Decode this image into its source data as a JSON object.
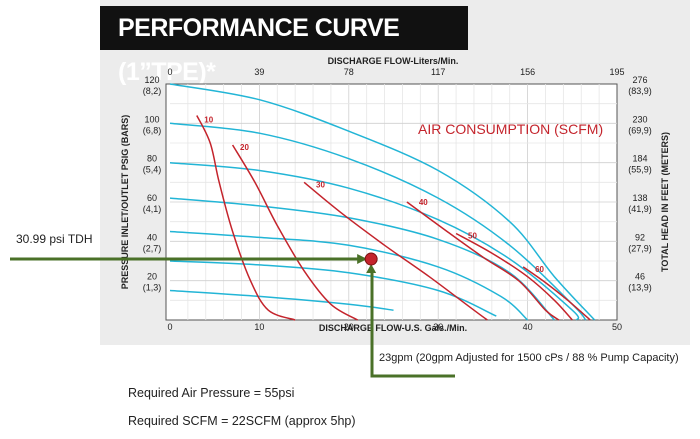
{
  "title": "PERFORMANCE CURVE (1”TPE)*",
  "annotations": {
    "tdh": "30.99 psi TDH",
    "flow": "23gpm (20gpm Adjusted for 1500 cPs / 88 % Pump Capacity)"
  },
  "summary": [
    "Required Air Pressure = 55psi",
    "Required SCFM = 22SCFM (approx 5hp)"
  ],
  "colors": {
    "head_curves": "#22b5d6",
    "air_curves": "#c4242c",
    "operating_lines": "#4a7128",
    "operating_point": "#c4242c",
    "title_bar": "#111111"
  },
  "chart_data": {
    "type": "line",
    "title": "AIR CONSUMPTION (SCFM)",
    "x_top": {
      "label": "DISCHARGE FLOW-Liters/Min.",
      "ticks": [
        "0",
        "39",
        "78",
        "117",
        "156",
        "195"
      ]
    },
    "x_bottom": {
      "label": "DISCHARGE FLOW-U.S. Gals./Min.",
      "ticks": [
        "0",
        "10",
        "20",
        "30",
        "40",
        "50"
      ],
      "range": [
        0,
        50
      ]
    },
    "y_left": {
      "label": "PRESSURE INLET/OUTLET PSIG (BARS)",
      "ticks": [
        {
          "value": 20,
          "psi": "20",
          "bar": "(1,3)"
        },
        {
          "value": 40,
          "psi": "40",
          "bar": "(2,7)"
        },
        {
          "value": 60,
          "psi": "60",
          "bar": "(4,1)"
        },
        {
          "value": 80,
          "psi": "80",
          "bar": "(5,4)"
        },
        {
          "value": 100,
          "psi": "100",
          "bar": "(6,8)"
        },
        {
          "value": 120,
          "psi": "120",
          "bar": "(8,2)"
        }
      ],
      "range": [
        0,
        120
      ]
    },
    "y_right": {
      "label": "TOTAL HEAD IN FEET (METERS)",
      "ticks": [
        {
          "value": 20,
          "feet": "46",
          "m": "(13,9)"
        },
        {
          "value": 40,
          "feet": "92",
          "m": "(27,9)"
        },
        {
          "value": 60,
          "feet": "138",
          "m": "(41,9)"
        },
        {
          "value": 80,
          "feet": "184",
          "m": "(55,9)"
        },
        {
          "value": 100,
          "feet": "230",
          "m": "(69,9)"
        },
        {
          "value": 120,
          "feet": "276",
          "m": "(83,9)"
        }
      ]
    },
    "pressure_curves": [
      {
        "values": [
          [
            0,
            120
          ],
          [
            10,
            112
          ],
          [
            20,
            96
          ],
          [
            30,
            76
          ],
          [
            38,
            50
          ],
          [
            43,
            22
          ],
          [
            47.5,
            0
          ]
        ]
      },
      {
        "values": [
          [
            0,
            100
          ],
          [
            10,
            95
          ],
          [
            20,
            82
          ],
          [
            30,
            62
          ],
          [
            38,
            38
          ],
          [
            45,
            8
          ],
          [
            46.5,
            0
          ]
        ]
      },
      {
        "values": [
          [
            0,
            80
          ],
          [
            10,
            76
          ],
          [
            20,
            67
          ],
          [
            30,
            51
          ],
          [
            38,
            31
          ],
          [
            45,
            5
          ],
          [
            45.5,
            0
          ]
        ]
      },
      {
        "values": [
          [
            0,
            62
          ],
          [
            10,
            58
          ],
          [
            20,
            52
          ],
          [
            30,
            41
          ],
          [
            38,
            24
          ],
          [
            43,
            0
          ]
        ]
      },
      {
        "values": [
          [
            0,
            45
          ],
          [
            10,
            42
          ],
          [
            20,
            38
          ],
          [
            30,
            27
          ],
          [
            37,
            12
          ],
          [
            40,
            0
          ]
        ]
      },
      {
        "values": [
          [
            0,
            30
          ],
          [
            10,
            28
          ],
          [
            20,
            24
          ],
          [
            30,
            15
          ],
          [
            36.5,
            2
          ]
        ]
      },
      {
        "values": [
          [
            0,
            15
          ],
          [
            10,
            12
          ],
          [
            20,
            8
          ],
          [
            25,
            5
          ]
        ]
      }
    ],
    "air_curves": [
      {
        "label": "10",
        "label_at": [
          3.5,
          102
        ],
        "values": [
          [
            3,
            104
          ],
          [
            4.5,
            90
          ],
          [
            5.5,
            70
          ],
          [
            7,
            45
          ],
          [
            9,
            20
          ],
          [
            11,
            5
          ],
          [
            14,
            0
          ]
        ]
      },
      {
        "label": "20",
        "label_at": [
          7.5,
          88
        ],
        "values": [
          [
            7,
            89
          ],
          [
            9.5,
            70
          ],
          [
            12,
            48
          ],
          [
            15,
            25
          ],
          [
            18,
            8
          ],
          [
            21,
            0
          ]
        ]
      },
      {
        "label": "30",
        "label_at": [
          16,
          69
        ],
        "values": [
          [
            15,
            70
          ],
          [
            19,
            55
          ],
          [
            24,
            38
          ],
          [
            29,
            22
          ],
          [
            34,
            5
          ],
          [
            35.5,
            0
          ]
        ]
      },
      {
        "label": "40",
        "label_at": [
          27.5,
          60
        ],
        "values": [
          [
            26.5,
            60
          ],
          [
            31,
            45
          ],
          [
            35,
            32
          ],
          [
            39,
            20
          ],
          [
            42,
            5
          ],
          [
            43.5,
            0
          ]
        ]
      },
      {
        "label": "50",
        "label_at": [
          33,
          43
        ],
        "values": [
          [
            32,
            44
          ],
          [
            36,
            34
          ],
          [
            40,
            22
          ],
          [
            43,
            10
          ],
          [
            45,
            0
          ]
        ]
      },
      {
        "label": "60",
        "label_at": [
          40.5,
          26
        ],
        "values": [
          [
            39.5,
            27
          ],
          [
            42,
            19
          ],
          [
            44.5,
            10
          ],
          [
            47,
            0
          ]
        ]
      }
    ],
    "operating_point": {
      "x": 22.5,
      "y": 30.99
    }
  }
}
